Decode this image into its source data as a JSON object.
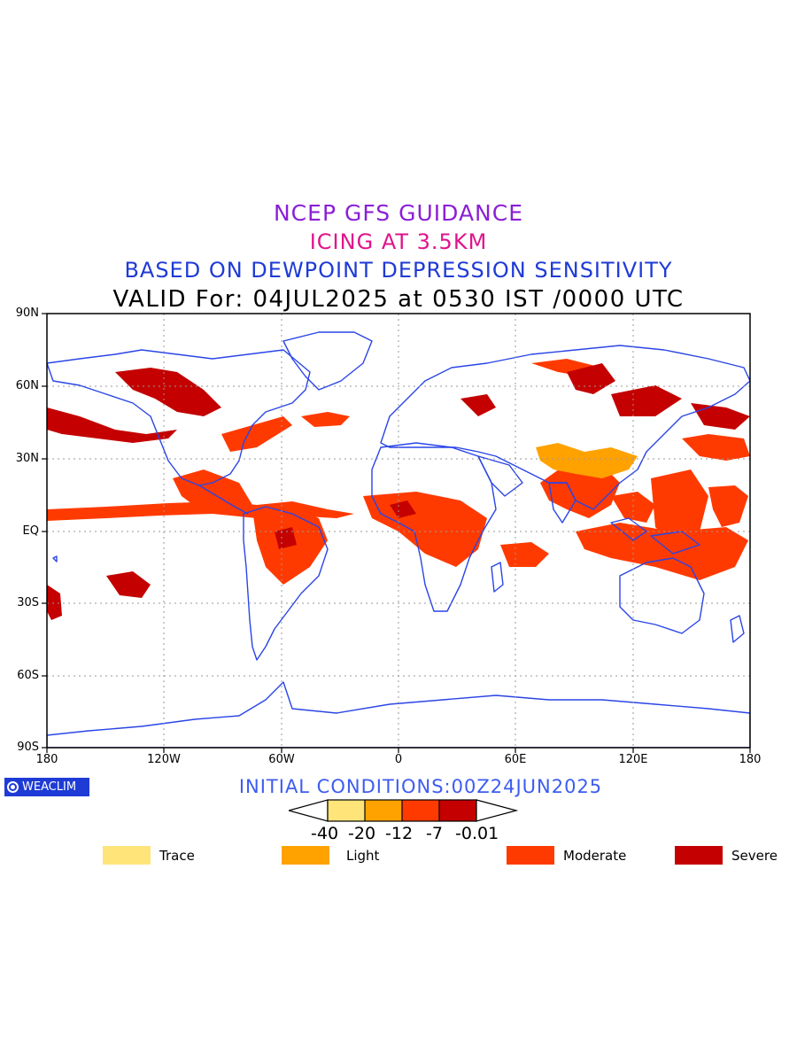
{
  "titles": {
    "line1": "NCEP GFS GUIDANCE",
    "line2": "ICING AT 3.5KM",
    "line3": "BASED ON DEWPOINT DEPRESSION SENSITIVITY",
    "line4": "VALID For: 04JUL2025 at 0530 IST /0000 UTC"
  },
  "colors": {
    "line1": "#8a1fd6",
    "line2": "#e0148c",
    "line3": "#1f3bd6",
    "line4": "#000000",
    "coastline": "#2a45e6",
    "grid": "#9a9a9a",
    "initial_conditions": "#3d5cf0"
  },
  "axes": {
    "lat_labels": [
      "90N",
      "60N",
      "30N",
      "EQ",
      "30S",
      "60S",
      "90S"
    ],
    "lon_labels": [
      "180",
      "120W",
      "60W",
      "0",
      "60E",
      "120E",
      "180"
    ],
    "lat_range": [
      -90,
      90
    ],
    "lon_range": [
      -180,
      180
    ],
    "grid": "dotted"
  },
  "logo": {
    "text": "WEACLIM",
    "icon": "weaclim-ring-icon"
  },
  "initial_conditions": "INITIAL CONDITIONS:00Z24JUN2025",
  "colorbar": {
    "boundaries": [
      "-40",
      "-20",
      "-12",
      "-7",
      "-0.01"
    ],
    "colors": [
      "#ffe47a",
      "#ffa200",
      "#ff3a00",
      "#c40000"
    ]
  },
  "legend": [
    {
      "label": "Trace",
      "color": "#ffe47a"
    },
    {
      "label": "Light",
      "color": "#ffa200"
    },
    {
      "label": "Moderate",
      "color": "#ff3a00"
    },
    {
      "label": "Severe",
      "color": "#c40000"
    }
  ]
}
